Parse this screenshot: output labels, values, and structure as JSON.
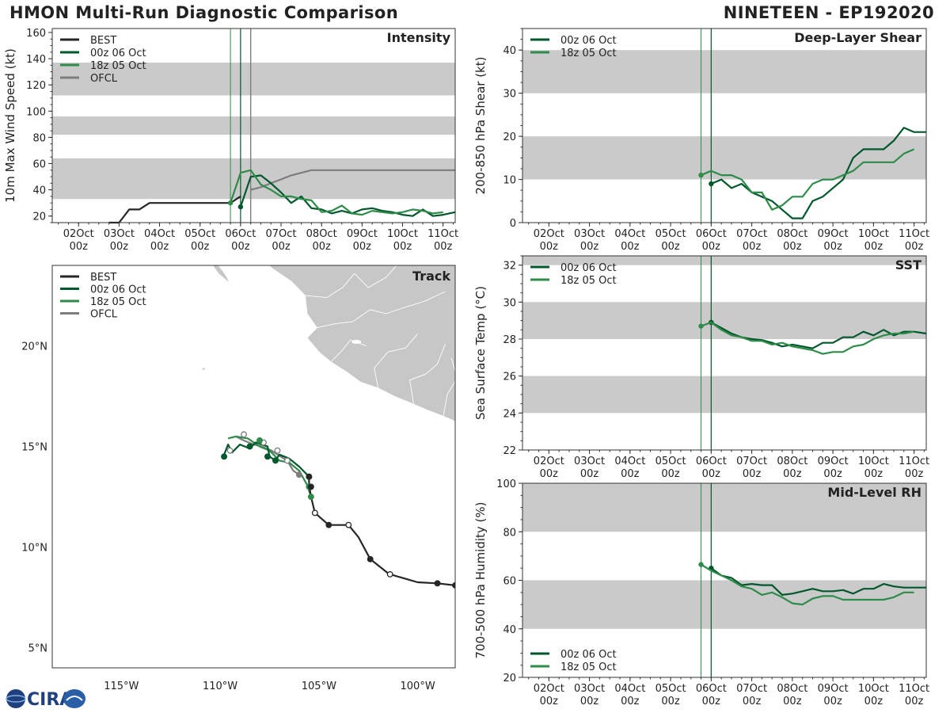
{
  "header": {
    "title_left": "HMON Multi-Run Diagnostic Comparison",
    "title_right": "NINETEEN - EP192020"
  },
  "colors": {
    "best": "#262626",
    "run1": "#00582c",
    "run2": "#2e8b4a",
    "ofcl": "#7d7d7d",
    "band": "#cacaca",
    "land": "#c7c7c7",
    "axis": "#333333"
  },
  "time_axis": {
    "labels": [
      "02Oct",
      "03Oct",
      "04Oct",
      "05Oct",
      "06Oct",
      "07Oct",
      "08Oct",
      "09Oct",
      "10Oct",
      "11Oct"
    ],
    "sublabel": "00z",
    "range_days": [
      1.35,
      11.3
    ],
    "run_markers_days": [
      5.75,
      6.0
    ]
  },
  "logo": {
    "text": "CIRA"
  },
  "chart_data": [
    {
      "id": "intensity",
      "type": "line",
      "title": "Intensity",
      "ylabel": "10m Max Wind Speed (kt)",
      "ylim": [
        15,
        163
      ],
      "yticks": [
        20,
        40,
        60,
        80,
        100,
        120,
        140,
        160
      ],
      "bands": [
        [
          33,
          64
        ],
        [
          82,
          96
        ],
        [
          112,
          137
        ]
      ],
      "ofcl_marker_day": 6.25,
      "legend": [
        "BEST",
        "00z 06 Oct",
        "18z 05 Oct",
        "OFCL"
      ],
      "series": [
        {
          "name": "BEST",
          "x": [
            2.75,
            3.0,
            3.25,
            3.5,
            3.75,
            4.0,
            4.25,
            4.5,
            4.75,
            5.0,
            5.25,
            5.5,
            5.75,
            6.0
          ],
          "y": [
            15,
            15,
            25,
            25,
            30,
            30,
            30,
            30,
            30,
            30,
            30,
            30,
            30,
            35
          ]
        },
        {
          "name": "OFCL",
          "x": [
            6.25,
            6.5,
            6.75,
            7.0,
            7.25,
            7.5,
            7.75,
            8.0,
            9.0,
            10.0,
            11.0,
            11.3
          ],
          "y": [
            40,
            42,
            45,
            48,
            51,
            53,
            55,
            55,
            55,
            55,
            55,
            55
          ]
        },
        {
          "name": "00z 06 Oct",
          "x": [
            6.0,
            6.25,
            6.5,
            6.75,
            7.0,
            7.25,
            7.5,
            7.75,
            8.0,
            8.25,
            8.5,
            8.75,
            9.0,
            9.25,
            9.5,
            9.75,
            10.0,
            10.25,
            10.5,
            10.75,
            11.0,
            11.3
          ],
          "y": [
            27,
            50,
            51,
            45,
            38,
            30,
            35,
            26,
            25,
            22,
            24,
            22,
            25,
            26,
            24,
            23,
            21,
            20,
            25,
            20,
            21,
            23
          ]
        },
        {
          "name": "18z 05 Oct",
          "x": [
            5.75,
            6.0,
            6.25,
            6.5,
            6.75,
            7.0,
            7.25,
            7.5,
            7.75,
            8.0,
            8.25,
            8.5,
            8.75,
            9.0,
            9.25,
            9.5,
            9.75,
            10.0,
            10.25,
            10.5,
            10.75,
            11.0
          ],
          "y": [
            30,
            53,
            55,
            44,
            40,
            35,
            35,
            33,
            32,
            23,
            24,
            28,
            22,
            21,
            24,
            23,
            22,
            23,
            25,
            24,
            22,
            23
          ]
        }
      ]
    },
    {
      "id": "shear",
      "type": "line",
      "title": "Deep-Layer Shear",
      "ylabel": "200-850 hPa Shear (kt)",
      "ylim": [
        0,
        45
      ],
      "yticks": [
        0,
        10,
        20,
        30,
        40
      ],
      "bands": [
        [
          10,
          20
        ],
        [
          30,
          40
        ]
      ],
      "legend": [
        "00z 06 Oct",
        "18z 05 Oct"
      ],
      "series": [
        {
          "name": "00z 06 Oct",
          "x": [
            6.0,
            6.25,
            6.5,
            6.75,
            7.0,
            7.25,
            7.5,
            7.75,
            8.0,
            8.25,
            8.5,
            8.75,
            9.0,
            9.25,
            9.5,
            9.75,
            10.0,
            10.25,
            10.5,
            10.75,
            11.0,
            11.3
          ],
          "y": [
            9,
            10,
            8,
            9,
            7,
            6,
            5,
            3,
            1,
            1,
            5,
            6,
            8,
            10,
            15,
            17,
            17,
            17,
            19,
            22,
            21,
            21
          ]
        },
        {
          "name": "18z 05 Oct",
          "x": [
            5.75,
            6.0,
            6.25,
            6.5,
            6.75,
            7.0,
            7.25,
            7.5,
            7.75,
            8.0,
            8.25,
            8.5,
            8.75,
            9.0,
            9.25,
            9.5,
            9.75,
            10.0,
            10.25,
            10.5,
            10.75,
            11.0
          ],
          "y": [
            11,
            12,
            11,
            11,
            10,
            7,
            7,
            3,
            4,
            6,
            6,
            9,
            10,
            10,
            11,
            12,
            14,
            14,
            14,
            14,
            16,
            17
          ]
        }
      ]
    },
    {
      "id": "sst",
      "type": "line",
      "title": "SST",
      "ylabel": "Sea Surface Temp (°C)",
      "ylim": [
        22,
        32.5
      ],
      "yticks": [
        22,
        24,
        26,
        28,
        30,
        32
      ],
      "bands": [
        [
          24,
          26
        ],
        [
          28,
          30
        ],
        [
          32,
          33
        ]
      ],
      "legend": [
        "00z 06 Oct",
        "18z 05 Oct"
      ],
      "series": [
        {
          "name": "00z 06 Oct",
          "x": [
            6.0,
            6.25,
            6.5,
            6.75,
            7.0,
            7.25,
            7.5,
            7.75,
            8.0,
            8.25,
            8.5,
            8.75,
            9.0,
            9.25,
            9.5,
            9.75,
            10.0,
            10.25,
            10.5,
            10.75,
            11.0,
            11.3
          ],
          "y": [
            28.9,
            28.6,
            28.3,
            28.1,
            28.0,
            27.95,
            27.8,
            27.6,
            27.7,
            27.6,
            27.5,
            27.8,
            27.8,
            28.1,
            28.1,
            28.4,
            28.2,
            28.5,
            28.2,
            28.4,
            28.4,
            28.3
          ]
        },
        {
          "name": "18z 05 Oct",
          "x": [
            5.75,
            6.0,
            6.25,
            6.5,
            6.75,
            7.0,
            7.25,
            7.5,
            7.75,
            8.0,
            8.25,
            8.5,
            8.75,
            9.0,
            9.25,
            9.5,
            9.75,
            10.0,
            10.25,
            10.5,
            10.75,
            11.0
          ],
          "y": [
            28.7,
            28.9,
            28.5,
            28.2,
            28.1,
            27.9,
            27.9,
            27.7,
            27.8,
            27.6,
            27.5,
            27.4,
            27.2,
            27.3,
            27.3,
            27.6,
            27.7,
            28.0,
            28.2,
            28.3,
            28.3,
            28.4
          ]
        }
      ]
    },
    {
      "id": "rh",
      "type": "line",
      "title": "Mid-Level RH",
      "ylabel": "700-500 hPa Humidity (%)",
      "ylim": [
        20,
        100
      ],
      "yticks": [
        20,
        40,
        60,
        80,
        100
      ],
      "bands": [
        [
          40,
          60
        ],
        [
          80,
          100
        ]
      ],
      "legend": [
        "00z 06 Oct",
        "18z 05 Oct"
      ],
      "series": [
        {
          "name": "00z 06 Oct",
          "x": [
            6.0,
            6.25,
            6.5,
            6.75,
            7.0,
            7.25,
            7.5,
            7.75,
            8.0,
            8.25,
            8.5,
            8.75,
            9.0,
            9.25,
            9.5,
            9.75,
            10.0,
            10.25,
            10.5,
            10.75,
            11.0,
            11.3
          ],
          "y": [
            65,
            62,
            61,
            58,
            58.5,
            58,
            58,
            54,
            54.5,
            55.5,
            56.5,
            55.5,
            55.5,
            56,
            54.5,
            56.5,
            56.5,
            58.5,
            57.5,
            57,
            57,
            57
          ]
        },
        {
          "name": "18z 05 Oct",
          "x": [
            5.75,
            6.0,
            6.25,
            6.5,
            6.75,
            7.0,
            7.25,
            7.5,
            7.75,
            8.0,
            8.25,
            8.5,
            8.75,
            9.0,
            9.25,
            9.5,
            9.75,
            10.0,
            10.25,
            10.5,
            10.75,
            11.0
          ],
          "y": [
            66.5,
            64,
            62,
            60,
            57.5,
            56.5,
            54,
            55,
            53,
            50.5,
            50,
            52.5,
            53.5,
            53.5,
            52,
            52,
            52,
            52,
            52,
            53,
            55,
            55
          ]
        }
      ]
    },
    {
      "id": "track",
      "type": "line",
      "title": "Track",
      "xlim": [
        -118.5,
        -98.1
      ],
      "ylim": [
        4.0,
        24.0
      ],
      "xticks": [
        -115,
        -110,
        -105,
        -100
      ],
      "xtick_labels": [
        "115°W",
        "110°W",
        "105°W",
        "100°W"
      ],
      "yticks": [
        5,
        10,
        15,
        20
      ],
      "ytick_labels": [
        "5°N",
        "10°N",
        "15°N",
        "20°N"
      ],
      "legend": [
        "BEST",
        "00z 06 Oct",
        "18z 05 Oct",
        "OFCL"
      ],
      "series": [
        {
          "name": "BEST",
          "lon": [
            -98.1,
            -99.0,
            -100.0,
            -101.4,
            -101.5,
            -102.4,
            -103.0,
            -103.5,
            -104.0,
            -104.5,
            -105.2,
            -105.4,
            -105.5,
            -105.5
          ],
          "lat": [
            8.1,
            8.2,
            8.25,
            8.65,
            8.7,
            9.4,
            10.5,
            11.1,
            11.1,
            11.1,
            11.7,
            12.5,
            13.1,
            13.5
          ],
          "dots": [
            [
              -98.1,
              8.1,
              "f"
            ],
            [
              -99.0,
              8.2,
              "f"
            ],
            [
              -101.4,
              8.65,
              "o"
            ],
            [
              -102.4,
              9.4,
              "f"
            ],
            [
              -103.5,
              11.1,
              "o"
            ],
            [
              -104.5,
              11.1,
              "f"
            ],
            [
              -105.2,
              11.7,
              "o"
            ],
            [
              -105.4,
              13.0,
              "f"
            ],
            [
              -105.5,
              13.5,
              "f"
            ]
          ]
        },
        {
          "name": "00z 06 Oct",
          "lon": [
            -105.5,
            -106.0,
            -106.5,
            -107.0,
            -107.2,
            -107.5,
            -107.6,
            -108.2,
            -108.5,
            -109.0,
            -109.4,
            -109.6,
            -109.8
          ],
          "lat": [
            13.5,
            14.0,
            14.4,
            14.6,
            14.3,
            14.5,
            15.0,
            15.2,
            14.9,
            15.1,
            14.7,
            15.1,
            14.6
          ],
          "dots": [
            [
              -105.5,
              13.5,
              "f"
            ],
            [
              -107.2,
              14.3,
              "f"
            ],
            [
              -107.6,
              14.5,
              "f"
            ],
            [
              -108.5,
              15.0,
              "f"
            ],
            [
              -109.8,
              14.5,
              "f"
            ]
          ]
        },
        {
          "name": "18z 05 Oct",
          "lon": [
            -105.4,
            -105.6,
            -106.0,
            -106.5,
            -107.0,
            -107.5,
            -108.0,
            -108.6,
            -109.2,
            -109.6
          ],
          "lat": [
            12.5,
            13.1,
            13.8,
            14.2,
            14.3,
            14.8,
            15.0,
            15.4,
            15.5,
            15.4
          ],
          "dots": [
            [
              -105.4,
              12.5,
              "f"
            ],
            [
              -105.5,
              13.0,
              "f"
            ],
            [
              -108.0,
              15.3,
              "f"
            ]
          ]
        },
        {
          "name": "OFCL",
          "lon": [
            -106.0,
            -106.3,
            -106.6,
            -107.1,
            -107.4,
            -107.9,
            -108.3,
            -108.8,
            -109.2
          ],
          "lat": [
            13.6,
            13.8,
            14.3,
            14.6,
            14.8,
            15.0,
            15.1,
            15.3,
            15.5
          ],
          "dots": [
            [
              -106.0,
              13.6,
              "f"
            ],
            [
              -106.6,
              14.3,
              "o"
            ],
            [
              -107.1,
              14.8,
              "o"
            ],
            [
              -107.8,
              15.2,
              "o"
            ],
            [
              -108.8,
              15.6,
              "o"
            ],
            [
              -109.5,
              14.8,
              "o"
            ]
          ]
        }
      ]
    }
  ]
}
